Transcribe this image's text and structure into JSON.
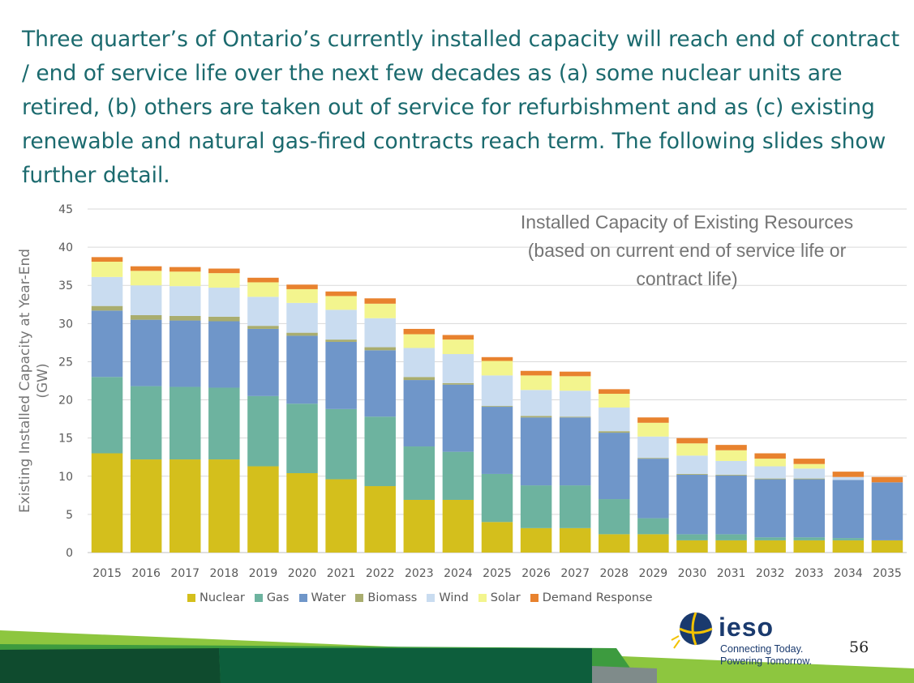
{
  "slide": {
    "title": "Three quarter’s of Ontario’s currently installed capacity will reach end of contract / end of service life over the next few decades as (a) some nuclear units are retired, (b) others are taken out of service for refurbishment and as (c) existing renewable and natural gas-fired contracts reach term.  The following slides show further detail.",
    "page_number": "56"
  },
  "logo": {
    "name": "ieso",
    "tagline_1": "Connecting Today.",
    "tagline_2": "Powering Tomorrow."
  },
  "chart_data": {
    "type": "bar",
    "stacked": true,
    "title_lines": [
      "Installed Capacity of Existing Resources",
      "(based on current end of service life or",
      "contract life)"
    ],
    "ylabel_lines": [
      "Existing Installed Capacity at Year-End",
      "(GW)"
    ],
    "xlabel": "",
    "ylim": [
      0,
      45
    ],
    "yticks": [
      0,
      5,
      10,
      15,
      20,
      25,
      30,
      35,
      40,
      45
    ],
    "grid": true,
    "legend_position": "bottom",
    "categories": [
      "2015",
      "2016",
      "2017",
      "2018",
      "2019",
      "2020",
      "2021",
      "2022",
      "2023",
      "2024",
      "2025",
      "2026",
      "2027",
      "2028",
      "2029",
      "2030",
      "2031",
      "2032",
      "2033",
      "2034",
      "2035"
    ],
    "series": [
      {
        "name": "Nuclear",
        "color": "#d4bf1c",
        "values": [
          13.0,
          12.2,
          12.2,
          12.2,
          11.3,
          10.4,
          9.6,
          8.7,
          6.9,
          6.9,
          4.0,
          3.2,
          3.2,
          2.4,
          2.4,
          1.6,
          1.6,
          1.6,
          1.6,
          1.6,
          1.6
        ]
      },
      {
        "name": "Gas",
        "color": "#6db39f",
        "values": [
          10.0,
          9.6,
          9.5,
          9.4,
          9.2,
          9.1,
          9.2,
          9.1,
          7.0,
          6.3,
          6.3,
          5.6,
          5.6,
          4.6,
          2.1,
          0.8,
          0.8,
          0.4,
          0.4,
          0.3,
          0.0
        ]
      },
      {
        "name": "Water",
        "color": "#6f96c9",
        "values": [
          8.7,
          8.7,
          8.7,
          8.7,
          8.8,
          8.9,
          8.8,
          8.7,
          8.7,
          8.8,
          8.8,
          8.9,
          8.9,
          8.7,
          7.8,
          7.8,
          7.7,
          7.6,
          7.6,
          7.6,
          7.6
        ]
      },
      {
        "name": "Biomass",
        "color": "#a9ad6f",
        "values": [
          0.6,
          0.6,
          0.6,
          0.6,
          0.4,
          0.4,
          0.3,
          0.4,
          0.4,
          0.2,
          0.1,
          0.2,
          0.1,
          0.2,
          0.1,
          0.1,
          0.1,
          0.1,
          0.1,
          0.0,
          0.0
        ]
      },
      {
        "name": "Wind",
        "color": "#c9dcf0",
        "values": [
          3.8,
          3.9,
          3.9,
          3.8,
          3.8,
          3.9,
          3.9,
          3.8,
          3.8,
          3.8,
          4.0,
          3.4,
          3.4,
          3.1,
          2.8,
          2.4,
          1.8,
          1.6,
          1.3,
          0.4,
          0.0
        ]
      },
      {
        "name": "Solar",
        "color": "#f3f58e",
        "values": [
          2.0,
          1.9,
          1.9,
          1.9,
          1.9,
          1.8,
          1.8,
          1.9,
          1.8,
          1.9,
          1.9,
          1.9,
          1.9,
          1.8,
          1.8,
          1.6,
          1.4,
          1.0,
          0.6,
          0.0,
          0.0
        ]
      },
      {
        "name": "Demand Response",
        "color": "#e8822e",
        "values": [
          0.6,
          0.6,
          0.6,
          0.6,
          0.6,
          0.6,
          0.6,
          0.7,
          0.7,
          0.6,
          0.5,
          0.6,
          0.6,
          0.6,
          0.7,
          0.7,
          0.7,
          0.7,
          0.7,
          0.7,
          0.7
        ]
      }
    ]
  }
}
